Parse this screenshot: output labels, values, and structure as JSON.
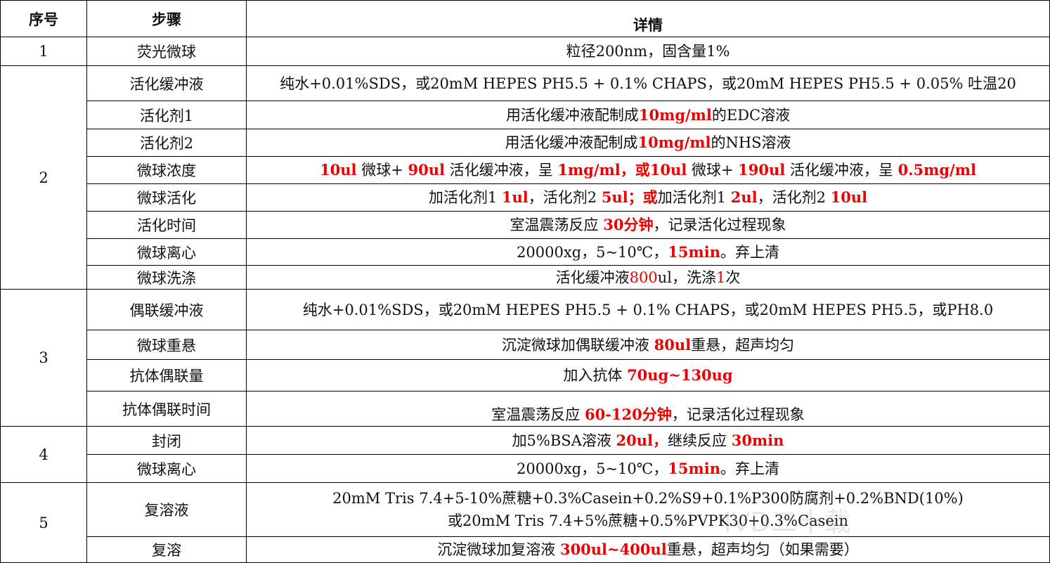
{
  "table": {
    "header": [
      "序号",
      "步骤",
      "详情"
    ],
    "groups": [
      {
        "number": "1",
        "rows": [
          {
            "step": "荧光微球",
            "detail": [
              [
                {
                  "text": "粒径200nm，固含量1%"
                }
              ]
            ]
          }
        ]
      },
      {
        "number": "2",
        "rows": [
          {
            "step": "活化缓冲液",
            "detail": [
              [
                {
                  "text": "纯水+0.01%SDS，或20mM HEPES PH5.5 + 0.1% CHAPS，或20mM HEPES PH5.5 + 0.05% 吐温20"
                }
              ]
            ]
          },
          {
            "step": "活化剂1",
            "detail": [
              [
                {
                  "text": "用活化缓冲液配制成"
                },
                {
                  "text": "10mg/ml",
                  "style": "red-bold"
                },
                {
                  "text": "的EDC溶液"
                }
              ]
            ]
          },
          {
            "step": "活化剂2",
            "detail": [
              [
                {
                  "text": "用活化缓冲液配制成"
                },
                {
                  "text": "10mg/ml",
                  "style": "red-bold"
                },
                {
                  "text": "的NHS溶液"
                }
              ]
            ]
          },
          {
            "step": "微球浓度",
            "detail": [
              [
                {
                  "text": "10ul",
                  "style": "red-bold"
                },
                {
                  "text": " 微球+ "
                },
                {
                  "text": "90ul",
                  "style": "red-bold"
                },
                {
                  "text": " 活化缓冲液，呈 "
                },
                {
                  "text": "1mg/ml，或10ul",
                  "style": "red-bold"
                },
                {
                  "text": " 微球+ "
                },
                {
                  "text": "190ul",
                  "style": "red-bold"
                },
                {
                  "text": " 活化缓冲液，呈 "
                },
                {
                  "text": "0.5mg/ml",
                  "style": "red-bold"
                }
              ]
            ]
          },
          {
            "step": "微球活化",
            "detail": [
              [
                {
                  "text": "加活化剂1 "
                },
                {
                  "text": "1ul",
                  "style": "red-bold"
                },
                {
                  "text": "，活化剂2 "
                },
                {
                  "text": "5ul；或",
                  "style": "red-bold"
                },
                {
                  "text": "加活化剂1 "
                },
                {
                  "text": "2ul",
                  "style": "red-bold"
                },
                {
                  "text": "，活化剂2 "
                },
                {
                  "text": "10ul",
                  "style": "red-bold"
                }
              ]
            ]
          },
          {
            "step": "活化时间",
            "detail": [
              [
                {
                  "text": "室温震荡反应 "
                },
                {
                  "text": "30分钟",
                  "style": "red-bold"
                },
                {
                  "text": "，记录活化过程现象"
                }
              ]
            ]
          },
          {
            "step": "微球离心",
            "detail": [
              [
                {
                  "text": "20000xg，5~10℃，"
                },
                {
                  "text": "15min",
                  "style": "red-bold"
                },
                {
                  "text": "。弃上清"
                }
              ]
            ]
          },
          {
            "step": "微球洗涤",
            "detail": [
              [
                {
                  "text": "活化缓冲液"
                },
                {
                  "text": "800",
                  "style": "red"
                },
                {
                  "text": "ul，洗涤"
                },
                {
                  "text": "1",
                  "style": "red"
                },
                {
                  "text": "次"
                }
              ]
            ]
          }
        ]
      },
      {
        "number": "3",
        "rows": [
          {
            "step": "偶联缓冲液",
            "detail": [
              [
                {
                  "text": "纯水+0.01%SDS，或20mM HEPES PH5.5 + 0.1% CHAPS，或20mM HEPES PH5.5，或PH8.0"
                }
              ]
            ]
          },
          {
            "step": "微球重悬",
            "detail": [
              [
                {
                  "text": "沉淀微球加偶联缓冲液 "
                },
                {
                  "text": "80ul",
                  "style": "red-bold"
                },
                {
                  "text": "重悬，超声均匀"
                }
              ]
            ]
          },
          {
            "step": "抗体偶联量",
            "detail": [
              [
                {
                  "text": "加入抗体 "
                },
                {
                  "text": "70ug~130ug",
                  "style": "red-bold"
                }
              ]
            ]
          },
          {
            "step": "抗体偶联时间",
            "detail": [
              [
                {
                  "text": "室温震荡反应 "
                },
                {
                  "text": "60-120分钟",
                  "style": "red-bold"
                },
                {
                  "text": "，记录活化过程现象"
                }
              ]
            ]
          }
        ]
      },
      {
        "number": "4",
        "rows": [
          {
            "step": "封闭",
            "detail": [
              [
                {
                  "text": "加5%BSA溶液 "
                },
                {
                  "text": "20ul，",
                  "style": "red-bold"
                },
                {
                  "text": "继续反应 "
                },
                {
                  "text": "30min",
                  "style": "red-bold"
                }
              ]
            ]
          },
          {
            "step": "微球离心",
            "detail": [
              [
                {
                  "text": "20000xg，5~10℃，"
                },
                {
                  "text": "15min",
                  "style": "red-bold"
                },
                {
                  "text": "。弃上清"
                }
              ]
            ]
          }
        ]
      },
      {
        "number": "5",
        "rows": [
          {
            "step": "复溶液",
            "detail": [
              [
                {
                  "text": "20mM Tris 7.4+5-10%蔗糖+0.3%Casein+0.2%S9+0.1%P300防腐剂+0.2%BND(10%)"
                }
              ],
              [
                {
                  "text": "或20mM Tris 7.4+5%蔗糖+0.5%PVPK30+0.3%Casein"
                }
              ]
            ]
          },
          {
            "step": "复溶",
            "detail": [
              [
                {
                  "text": "沉淀微球加复溶液 "
                },
                {
                  "text": "300ul~400ul",
                  "style": "red-bold"
                },
                {
                  "text": "重悬，超声均匀（如果需要）"
                }
              ]
            ]
          }
        ]
      }
    ]
  },
  "watermark": "IVD二十载"
}
